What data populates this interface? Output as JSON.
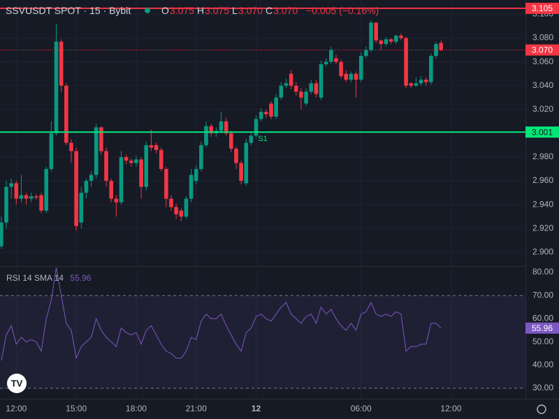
{
  "header": {
    "symbol": "SSVUSDT SPOT · 15 · Bybit",
    "ohlc": [
      {
        "key": "O",
        "value": "3.075"
      },
      {
        "key": "H",
        "value": "3.075"
      },
      {
        "key": "L",
        "value": "3.070"
      },
      {
        "key": "C",
        "value": "3.070"
      }
    ],
    "change": "−0.005 (−0.16%)"
  },
  "chart_data": [
    {
      "type": "candlestick",
      "up_color": "#089981",
      "down_color": "#f23645",
      "grid": true,
      "open": [
        2.905,
        2.925,
        2.955,
        2.958,
        2.945,
        2.948,
        2.945,
        2.947,
        2.948,
        2.935,
        2.97,
        3.0,
        3.077,
        3.04,
        2.992,
        2.985,
        2.925,
        2.95,
        2.96,
        2.965,
        3.005,
        2.985,
        2.96,
        2.945,
        2.942,
        2.98,
        2.977,
        2.975,
        2.978,
        2.955,
        2.99,
        2.99,
        2.986,
        2.97,
        2.945,
        2.938,
        2.935,
        2.93,
        2.945,
        2.96,
        2.97,
        2.99,
        3.006,
        3.0,
        3.002,
        3.01,
        3.0,
        2.987,
        2.975,
        2.958,
        2.992,
        2.998,
        3.012,
        3.018,
        3.025,
        3.014,
        3.03,
        3.04,
        3.05,
        3.04,
        3.035,
        3.025,
        3.035,
        3.042,
        3.03,
        3.058,
        3.06,
        3.063,
        3.06,
        3.05,
        3.045,
        3.05,
        3.045,
        3.065,
        3.07,
        3.093,
        3.078,
        3.075,
        3.079,
        3.077,
        3.082,
        3.08,
        3.042,
        3.04,
        3.042,
        3.045,
        3.043,
        3.065,
        3.076
      ],
      "high": [
        2.93,
        2.96,
        2.962,
        2.96,
        2.965,
        2.95,
        2.95,
        2.949,
        2.95,
        2.972,
        3.01,
        3.092,
        3.079,
        3.042,
        2.995,
        2.988,
        2.955,
        2.962,
        2.968,
        3.008,
        3.006,
        2.988,
        2.962,
        2.948,
        2.985,
        2.982,
        2.979,
        2.981,
        2.98,
        2.993,
        3.003,
        2.992,
        2.988,
        2.972,
        2.948,
        2.941,
        2.937,
        2.947,
        2.97,
        2.973,
        2.993,
        3.01,
        3.008,
        3.005,
        3.018,
        3.013,
        3.002,
        2.989,
        2.977,
        2.995,
        3.001,
        3.015,
        3.021,
        3.02,
        3.027,
        3.033,
        3.043,
        3.046,
        3.053,
        3.043,
        3.038,
        3.038,
        3.045,
        3.045,
        3.061,
        3.063,
        3.073,
        3.066,
        3.062,
        3.053,
        3.052,
        3.052,
        3.068,
        3.073,
        3.095,
        3.093,
        3.079,
        3.081,
        3.08,
        3.083,
        3.084,
        3.081,
        3.043,
        3.047,
        3.048,
        3.047,
        3.067,
        3.077,
        3.078
      ],
      "low": [
        2.903,
        2.92,
        2.945,
        2.94,
        2.942,
        2.94,
        2.942,
        2.944,
        2.933,
        2.933,
        2.968,
        2.998,
        3.035,
        2.99,
        2.975,
        2.918,
        2.92,
        2.945,
        2.955,
        2.962,
        2.982,
        2.955,
        2.942,
        2.93,
        2.94,
        2.974,
        2.972,
        2.972,
        2.945,
        2.952,
        2.985,
        2.983,
        2.968,
        2.938,
        2.935,
        2.928,
        2.926,
        2.928,
        2.942,
        2.957,
        2.968,
        2.988,
        2.997,
        2.997,
        3.0,
        2.998,
        2.984,
        2.97,
        2.957,
        2.956,
        2.99,
        2.996,
        3.01,
        3.013,
        3.012,
        3.012,
        3.028,
        3.038,
        3.037,
        3.032,
        3.02,
        3.023,
        3.033,
        3.03,
        3.028,
        3.056,
        3.058,
        3.058,
        3.046,
        3.043,
        3.043,
        3.03,
        3.043,
        3.063,
        3.068,
        3.076,
        3.07,
        3.073,
        3.075,
        3.075,
        3.078,
        3.038,
        3.038,
        3.039,
        3.04,
        3.04,
        3.041,
        3.063,
        3.069
      ],
      "close": [
        2.925,
        2.955,
        2.958,
        2.945,
        2.948,
        2.945,
        2.947,
        2.946,
        2.935,
        2.97,
        3.0,
        3.077,
        3.04,
        2.992,
        2.985,
        2.922,
        2.95,
        2.96,
        2.965,
        3.005,
        2.985,
        2.96,
        2.945,
        2.942,
        2.98,
        2.977,
        2.975,
        2.978,
        2.955,
        2.99,
        2.988,
        2.986,
        2.97,
        2.945,
        2.938,
        2.932,
        2.93,
        2.945,
        2.965,
        2.97,
        2.99,
        3.006,
        3.0,
        3.002,
        3.01,
        3.0,
        2.987,
        2.975,
        2.96,
        2.992,
        2.998,
        3.012,
        3.018,
        3.016,
        3.014,
        3.03,
        3.04,
        3.042,
        3.04,
        3.035,
        3.03,
        3.035,
        3.042,
        3.033,
        3.058,
        3.06,
        3.07,
        3.06,
        3.048,
        3.045,
        3.05,
        3.045,
        3.065,
        3.07,
        3.093,
        3.078,
        3.075,
        3.079,
        3.077,
        3.082,
        3.08,
        3.04,
        3.04,
        3.042,
        3.045,
        3.043,
        3.065,
        3.075,
        3.07
      ],
      "ylim": [
        2.889,
        3.112
      ],
      "yticks": [
        {
          "value": 2.9,
          "label": "2.900"
        },
        {
          "value": 2.92,
          "label": "2.920"
        },
        {
          "value": 2.94,
          "label": "2.940"
        },
        {
          "value": 2.96,
          "label": "2.960"
        },
        {
          "value": 2.98,
          "label": "2.980"
        },
        {
          "value": 3.0,
          "label": "3.000"
        },
        {
          "value": 3.02,
          "label": "3.020"
        },
        {
          "value": 3.04,
          "label": "3.040"
        },
        {
          "value": 3.06,
          "label": "3.060"
        },
        {
          "value": 3.08,
          "label": "3.080"
        },
        {
          "value": 3.1,
          "label": "3.100"
        }
      ],
      "xlim": [
        -0.26,
        104.9
      ],
      "xticks": [
        {
          "value": 3,
          "label": "12:00"
        },
        {
          "value": 15,
          "label": "15:00"
        },
        {
          "value": 27,
          "label": "18:00"
        },
        {
          "value": 39,
          "label": "21:00"
        },
        {
          "value": 51,
          "label": "12"
        },
        {
          "value": 72,
          "label": "06:00"
        },
        {
          "value": 90,
          "label": "12:00"
        }
      ],
      "price_lines": [
        {
          "value": 3.105,
          "color": "#f23645"
        },
        {
          "value": 3.001,
          "color": "#00e676"
        },
        {
          "value": 3.07,
          "label": "3.070",
          "color": "#f23645",
          "style": "dotted"
        }
      ],
      "annotation": "S1"
    },
    {
      "type": "line",
      "title": "RSI 14 SMA 14",
      "color": "#7e57c2",
      "values": [
        42,
        53,
        57,
        49,
        52,
        50,
        51,
        50,
        46,
        60,
        68,
        82,
        70,
        58,
        55,
        43,
        48,
        50,
        52,
        60,
        55,
        52,
        50,
        48,
        56,
        54,
        53,
        54,
        49,
        55,
        57,
        53,
        49,
        46,
        45,
        43,
        43,
        46,
        52,
        51,
        59,
        62,
        60,
        60,
        62,
        57,
        53,
        49,
        46,
        54,
        56,
        61,
        62,
        60,
        59,
        62,
        65,
        67,
        62,
        60,
        58,
        61,
        62,
        58,
        65,
        62,
        64,
        60,
        57,
        55,
        58,
        55,
        62,
        63,
        67,
        62,
        61,
        62,
        61,
        63,
        62,
        46,
        48,
        48,
        49,
        49,
        58,
        58,
        55.96
      ],
      "ylim": [
        25.8,
        82.1
      ],
      "band": [
        30,
        70
      ],
      "yticks": [
        {
          "value": 30,
          "label": "30.00"
        },
        {
          "value": 40,
          "label": "40.00"
        },
        {
          "value": 50,
          "label": "50.00"
        },
        {
          "value": 60,
          "label": "60.00"
        },
        {
          "value": 70,
          "label": "70.00"
        },
        {
          "value": 80,
          "label": "80.00"
        }
      ]
    }
  ]
}
